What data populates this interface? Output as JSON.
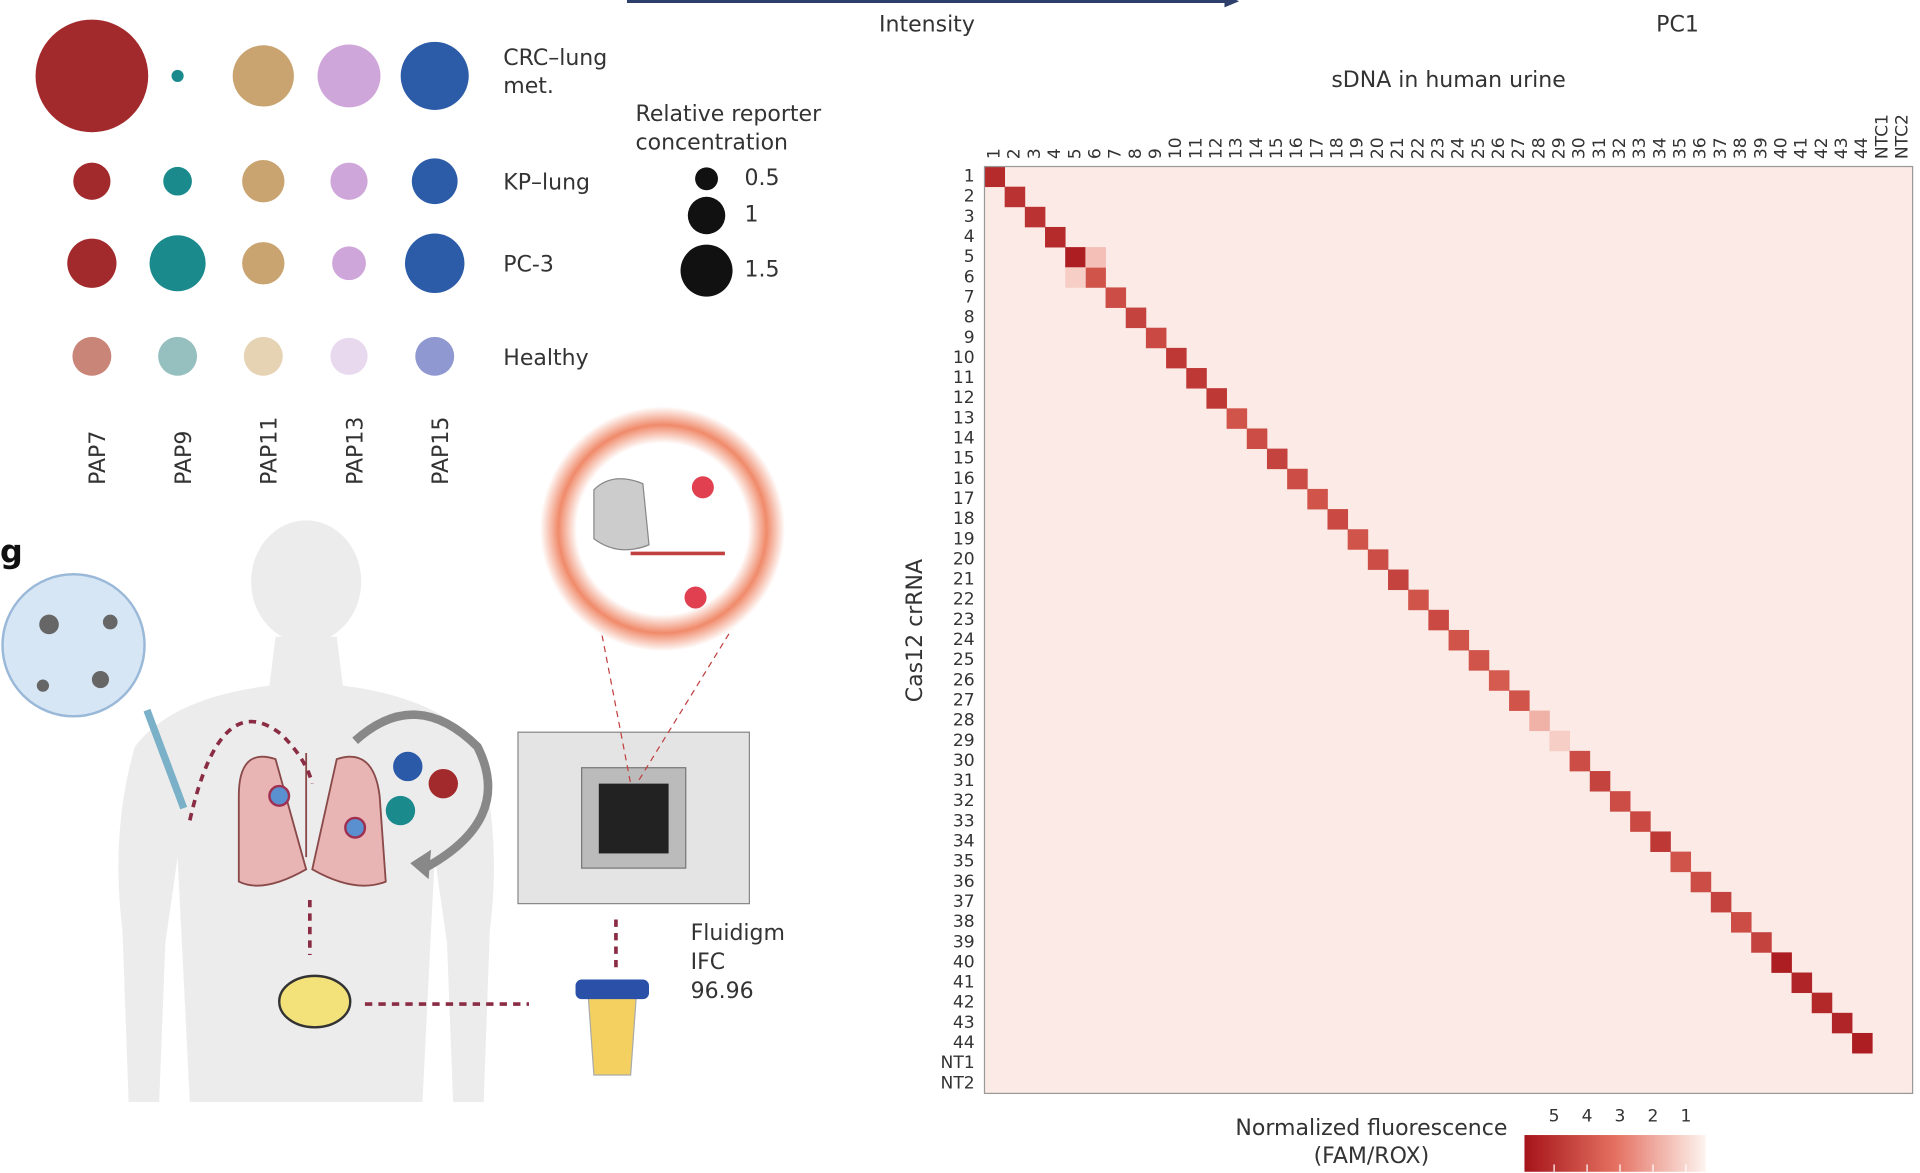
{
  "chart_data": [
    {
      "type": "bubble",
      "columns": [
        "PAP7",
        "PAP9",
        "PAP11",
        "PAP13",
        "PAP15"
      ],
      "series": [
        {
          "name": "CRC–lung met.",
          "colors": [
            "#a32a2c",
            "#1b8a8c",
            "#c9a470",
            "#cfa6da",
            "#2c5ca8"
          ],
          "values": [
            3.0,
            0.07,
            1.5,
            1.55,
            1.7
          ]
        },
        {
          "name": "KP–lung",
          "colors": [
            "#a32a2c",
            "#1b8a8c",
            "#c9a470",
            "#cfa6da",
            "#2c5ca8"
          ],
          "values": [
            0.8,
            0.55,
            0.95,
            0.8,
            1.05
          ]
        },
        {
          "name": "PC-3",
          "colors": [
            "#a32a2c",
            "#1b8a8c",
            "#c9a470",
            "#cfa6da",
            "#2c5ca8"
          ],
          "values": [
            1.15,
            1.35,
            0.95,
            0.7,
            1.45
          ]
        },
        {
          "name": "Healthy",
          "colors": [
            "#c98578",
            "#96bfc0",
            "#e6d3b4",
            "#e9d9ee",
            "#8f98d0"
          ],
          "values": [
            0.85,
            0.85,
            0.85,
            0.8,
            0.85
          ]
        }
      ],
      "legend": {
        "title": "Relative reporter concentration",
        "sizes": [
          0.5,
          1,
          1.5
        ]
      }
    },
    {
      "type": "heatmap",
      "title": "sDNA in human urine",
      "ylabel": "Cas12 crRNA",
      "x": [
        "1",
        "2",
        "3",
        "4",
        "5",
        "6",
        "7",
        "8",
        "9",
        "10",
        "11",
        "12",
        "13",
        "14",
        "15",
        "16",
        "17",
        "18",
        "19",
        "20",
        "21",
        "22",
        "23",
        "24",
        "25",
        "26",
        "27",
        "28",
        "29",
        "30",
        "31",
        "32",
        "33",
        "34",
        "35",
        "36",
        "37",
        "38",
        "39",
        "40",
        "41",
        "42",
        "43",
        "44",
        "NTC1",
        "NTC2"
      ],
      "y": [
        "1",
        "2",
        "3",
        "4",
        "5",
        "6",
        "7",
        "8",
        "9",
        "10",
        "11",
        "12",
        "13",
        "14",
        "15",
        "16",
        "17",
        "18",
        "19",
        "20",
        "21",
        "22",
        "23",
        "24",
        "25",
        "26",
        "27",
        "28",
        "29",
        "30",
        "31",
        "32",
        "33",
        "34",
        "35",
        "36",
        "37",
        "38",
        "39",
        "40",
        "41",
        "42",
        "43",
        "44",
        "NT1",
        "NT2"
      ],
      "diagonal": [
        5.2,
        5,
        5,
        5.2,
        5.6,
        4,
        4.2,
        4.5,
        4.3,
        4.8,
        4.8,
        4.8,
        4,
        4.2,
        4.5,
        4.2,
        4,
        4.3,
        4,
        4.2,
        4.5,
        4,
        4.3,
        4,
        4,
        3.8,
        4,
        1.8,
        1.2,
        4.2,
        4.5,
        4.2,
        4.3,
        4.8,
        4,
        4.2,
        4.5,
        4.2,
        4.5,
        5.6,
        5.4,
        5.3,
        5.4,
        5.6
      ],
      "off_diagonal": [
        {
          "row": 4,
          "col": 5,
          "value": 1.5
        },
        {
          "row": 5,
          "col": 4,
          "value": 1.2
        }
      ],
      "background": 0.6,
      "clim": [
        0.4,
        5.9
      ],
      "cticks": [
        5,
        4,
        3,
        2,
        1
      ],
      "colorbar_label": "Normalized fluorescence (FAM/ROX)"
    }
  ],
  "panel_fragments": {
    "intensity_label": "Intensity",
    "pc1_label": "PC1"
  },
  "diagram": {
    "panel_label": "g",
    "device_label": "Fluidigm IFC 96.96"
  }
}
